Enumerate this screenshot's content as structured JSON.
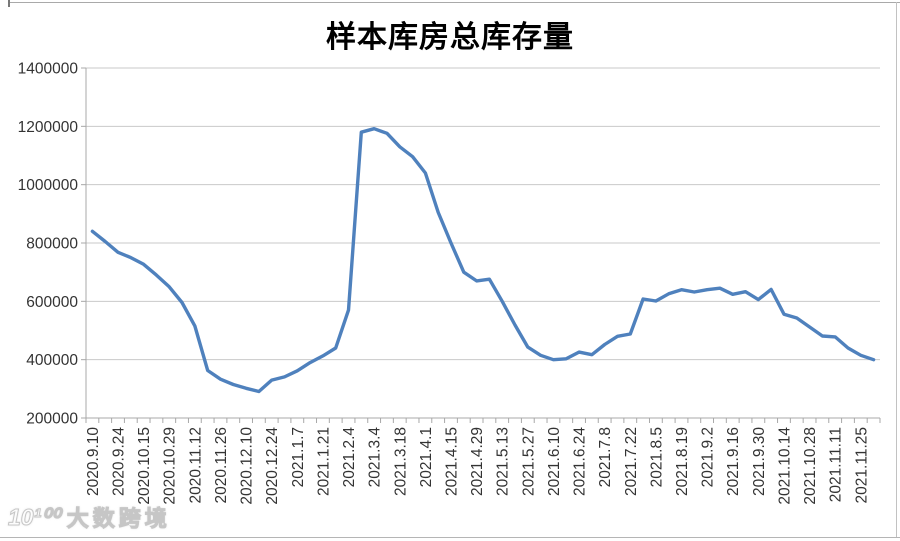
{
  "window": {
    "background": "#ffffff"
  },
  "watermark": {
    "logo": "10¹⁰⁰",
    "text": "大数跨境"
  },
  "chart_data": {
    "type": "line",
    "title": "样本库房总库存量",
    "xlabel": "",
    "ylabel": "",
    "ylim": [
      200000,
      1400000
    ],
    "y_tick_step": 200000,
    "y_tick_labels": [
      "200000",
      "400000",
      "600000",
      "800000",
      "1000000",
      "1200000",
      "1400000"
    ],
    "grid": "horizontal",
    "legend": "none",
    "x_label_interval": 2,
    "x_tick_labels_shown": [
      "2020.9.10",
      "2020.9.24",
      "2020.10.15",
      "2020.10.29",
      "2020.11.12",
      "2020.11.26",
      "2020.12.10",
      "2020.12.24",
      "2021.1.7",
      "2021.1.21",
      "2021.2.4",
      "2021.3.4",
      "2021.3.18",
      "2021.4.1",
      "2021.4.15",
      "2021.4.29",
      "2021.5.13",
      "2021.5.27",
      "2021.6.10",
      "2021.6.24",
      "2021.7.8",
      "2021.7.22",
      "2021.8.5",
      "2021.8.19",
      "2021.9.2",
      "2021.9.16",
      "2021.9.30",
      "2021.10.14",
      "2021.10.28",
      "2021.11.11",
      "2021.11.25"
    ],
    "series": [
      {
        "name": "样本库房总库存量",
        "color": "#4f81bd",
        "points": [
          {
            "date": "2020.9.10",
            "value": 840000
          },
          {
            "date": "2020.9.17",
            "value": 805000
          },
          {
            "date": "2020.9.24",
            "value": 768000
          },
          {
            "date": "2020.10.8",
            "value": 750000
          },
          {
            "date": "2020.10.15",
            "value": 727000
          },
          {
            "date": "2020.10.22",
            "value": 690000
          },
          {
            "date": "2020.10.29",
            "value": 650000
          },
          {
            "date": "2020.11.5",
            "value": 596000
          },
          {
            "date": "2020.11.12",
            "value": 515000
          },
          {
            "date": "2020.11.19",
            "value": 363000
          },
          {
            "date": "2020.11.26",
            "value": 333000
          },
          {
            "date": "2020.12.3",
            "value": 315000
          },
          {
            "date": "2020.12.10",
            "value": 302000
          },
          {
            "date": "2020.12.17",
            "value": 291000
          },
          {
            "date": "2020.12.24",
            "value": 330000
          },
          {
            "date": "2020.12.31",
            "value": 341000
          },
          {
            "date": "2021.1.7",
            "value": 362000
          },
          {
            "date": "2021.1.14",
            "value": 390000
          },
          {
            "date": "2021.1.21",
            "value": 413000
          },
          {
            "date": "2021.1.28",
            "value": 440000
          },
          {
            "date": "2021.2.4",
            "value": 570000
          },
          {
            "date": "2021.2.25",
            "value": 1180000
          },
          {
            "date": "2021.3.4",
            "value": 1192000
          },
          {
            "date": "2021.3.11",
            "value": 1176000
          },
          {
            "date": "2021.3.18",
            "value": 1130000
          },
          {
            "date": "2021.3.25",
            "value": 1096000
          },
          {
            "date": "2021.4.1",
            "value": 1040000
          },
          {
            "date": "2021.4.8",
            "value": 905000
          },
          {
            "date": "2021.4.15",
            "value": 800000
          },
          {
            "date": "2021.4.22",
            "value": 700000
          },
          {
            "date": "2021.4.29",
            "value": 670000
          },
          {
            "date": "2021.5.6",
            "value": 676000
          },
          {
            "date": "2021.5.13",
            "value": 600000
          },
          {
            "date": "2021.5.20",
            "value": 519000
          },
          {
            "date": "2021.5.27",
            "value": 443000
          },
          {
            "date": "2021.6.3",
            "value": 415000
          },
          {
            "date": "2021.6.10",
            "value": 400000
          },
          {
            "date": "2021.6.17",
            "value": 403000
          },
          {
            "date": "2021.6.24",
            "value": 426000
          },
          {
            "date": "2021.7.1",
            "value": 417000
          },
          {
            "date": "2021.7.8",
            "value": 452000
          },
          {
            "date": "2021.7.15",
            "value": 480000
          },
          {
            "date": "2021.7.22",
            "value": 488000
          },
          {
            "date": "2021.7.29",
            "value": 608000
          },
          {
            "date": "2021.8.5",
            "value": 601000
          },
          {
            "date": "2021.8.12",
            "value": 626000
          },
          {
            "date": "2021.8.19",
            "value": 640000
          },
          {
            "date": "2021.8.26",
            "value": 632000
          },
          {
            "date": "2021.9.2",
            "value": 640000
          },
          {
            "date": "2021.9.9",
            "value": 645000
          },
          {
            "date": "2021.9.16",
            "value": 624000
          },
          {
            "date": "2021.9.23",
            "value": 633000
          },
          {
            "date": "2021.9.30",
            "value": 606000
          },
          {
            "date": "2021.10.7",
            "value": 641000
          },
          {
            "date": "2021.10.14",
            "value": 556000
          },
          {
            "date": "2021.10.21",
            "value": 543000
          },
          {
            "date": "2021.10.28",
            "value": 512000
          },
          {
            "date": "2021.11.4",
            "value": 481000
          },
          {
            "date": "2021.11.11",
            "value": 478000
          },
          {
            "date": "2021.11.18",
            "value": 440000
          },
          {
            "date": "2021.11.25",
            "value": 415000
          },
          {
            "date": "2021.12.2",
            "value": 400000
          }
        ]
      }
    ]
  }
}
